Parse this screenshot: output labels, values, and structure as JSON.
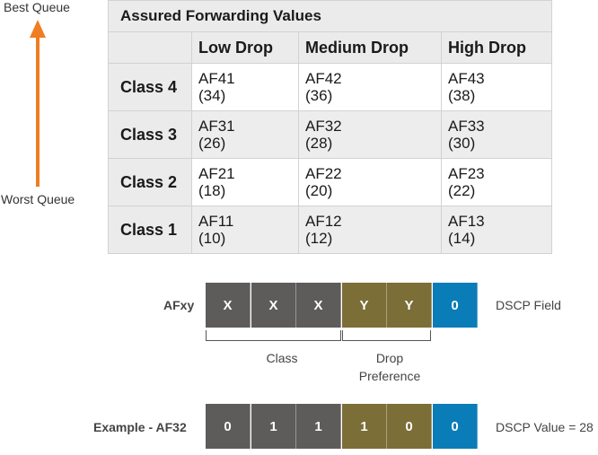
{
  "queue_scale": {
    "top_label": "Best Queue",
    "bottom_label": "Worst Queue",
    "arrow_color": "#ef7d22"
  },
  "af_table": {
    "title": "Assured Forwarding Values",
    "columns": [
      "Low Drop",
      "Medium Drop",
      "High Drop"
    ],
    "rows": [
      {
        "class": "Class 4",
        "cells": [
          {
            "name": "AF41",
            "value": "(34)"
          },
          {
            "name": "AF42",
            "value": "(36)"
          },
          {
            "name": "AF43",
            "value": "(38)"
          }
        ]
      },
      {
        "class": "Class 3",
        "cells": [
          {
            "name": "AF31",
            "value": "(26)"
          },
          {
            "name": "AF32",
            "value": "(28)"
          },
          {
            "name": "AF33",
            "value": "(30)"
          }
        ]
      },
      {
        "class": "Class 2",
        "cells": [
          {
            "name": "AF21",
            "value": "(18)"
          },
          {
            "name": "AF22",
            "value": "(20)"
          },
          {
            "name": "AF23",
            "value": "(22)"
          }
        ]
      },
      {
        "class": "Class 1",
        "cells": [
          {
            "name": "AF11",
            "value": "(10)"
          },
          {
            "name": "AF12",
            "value": "(12)"
          },
          {
            "name": "AF13",
            "value": "(14)"
          }
        ]
      }
    ]
  },
  "afxy": {
    "label": "AFxy",
    "bits": [
      "X",
      "X",
      "X",
      "Y",
      "Y",
      "0"
    ],
    "right_label": "DSCP Field",
    "class_label": "Class",
    "drop_label_line1": "Drop",
    "drop_label_line2": "Preference"
  },
  "example": {
    "label": "Example - AF32",
    "bits": [
      "0",
      "1",
      "1",
      "1",
      "0",
      "0"
    ],
    "right_label": "DSCP Value = 28"
  },
  "colors": {
    "class_bits": "#5e5b5b",
    "drop_bits": "#7b6e37",
    "zero_bit": "#0a7cb8"
  }
}
